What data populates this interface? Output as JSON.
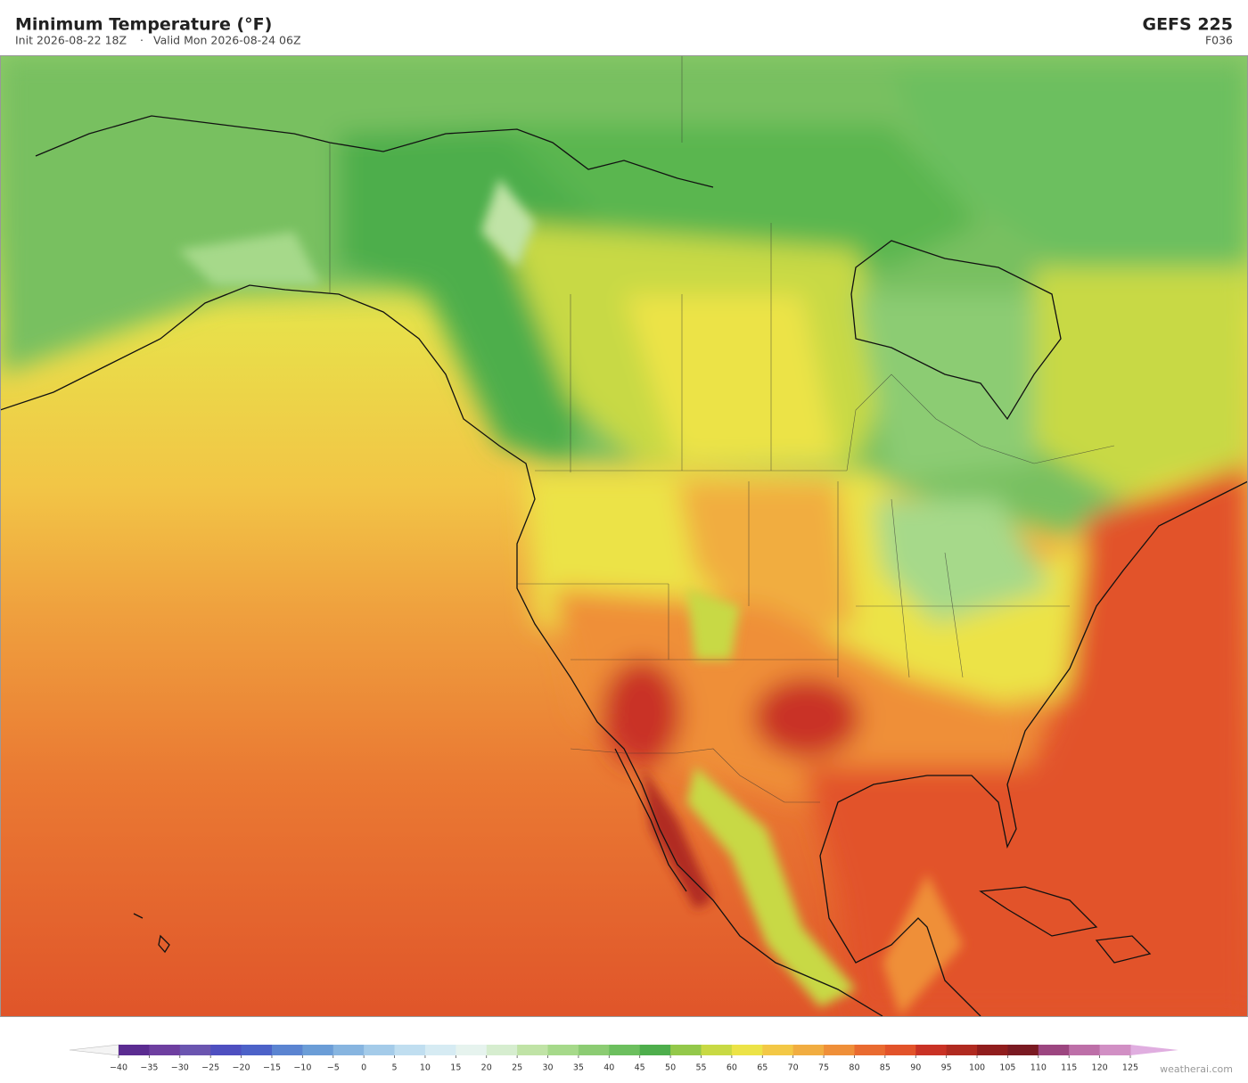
{
  "header": {
    "title": "Minimum Temperature  (°F)",
    "init": "Init 2026-08-22 18Z",
    "separator": "·",
    "valid": "Valid Mon 2026-08-24 06Z",
    "model": "GEFS  225",
    "forecast_hour": "F036"
  },
  "colorbar": {
    "ticks": [
      {
        "value": -40,
        "label": "−40"
      },
      {
        "value": -35,
        "label": "−35"
      },
      {
        "value": -30,
        "label": "−30"
      },
      {
        "value": -25,
        "label": "−25"
      },
      {
        "value": -20,
        "label": "−20"
      },
      {
        "value": -15,
        "label": "−15"
      },
      {
        "value": -10,
        "label": "−10"
      },
      {
        "value": -5,
        "label": "−5"
      },
      0,
      5,
      10,
      15,
      20,
      25,
      30,
      35,
      40,
      45,
      50,
      55,
      60,
      65,
      70,
      75,
      80,
      85,
      90,
      95,
      100,
      105,
      110,
      115,
      120,
      125
    ],
    "colors": [
      "#5b2c91",
      "#6e3fa0",
      "#6b55b0",
      "#4e4fc0",
      "#4c62c8",
      "#5b84d1",
      "#6b9dd7",
      "#87b5e0",
      "#a4cbe9",
      "#c0def0",
      "#d6ebf3",
      "#e6f3ee",
      "#d6edcf",
      "#c0e3a6",
      "#a6d98a",
      "#8ccc73",
      "#6cbf5e",
      "#4eae4c",
      "#93c84a",
      "#c8d944",
      "#ece347",
      "#f3c846",
      "#f1ad41",
      "#ef8f39",
      "#e96b30",
      "#e2532a",
      "#c93225",
      "#b02a20",
      "#901d1d",
      "#7a1a22",
      "#9c4680",
      "#bd6fa8",
      "#d18fc4"
    ],
    "under_color": "#f4f4f4",
    "over_color": "#e0aee0"
  },
  "footer": {
    "credit": "weatherai.com"
  }
}
